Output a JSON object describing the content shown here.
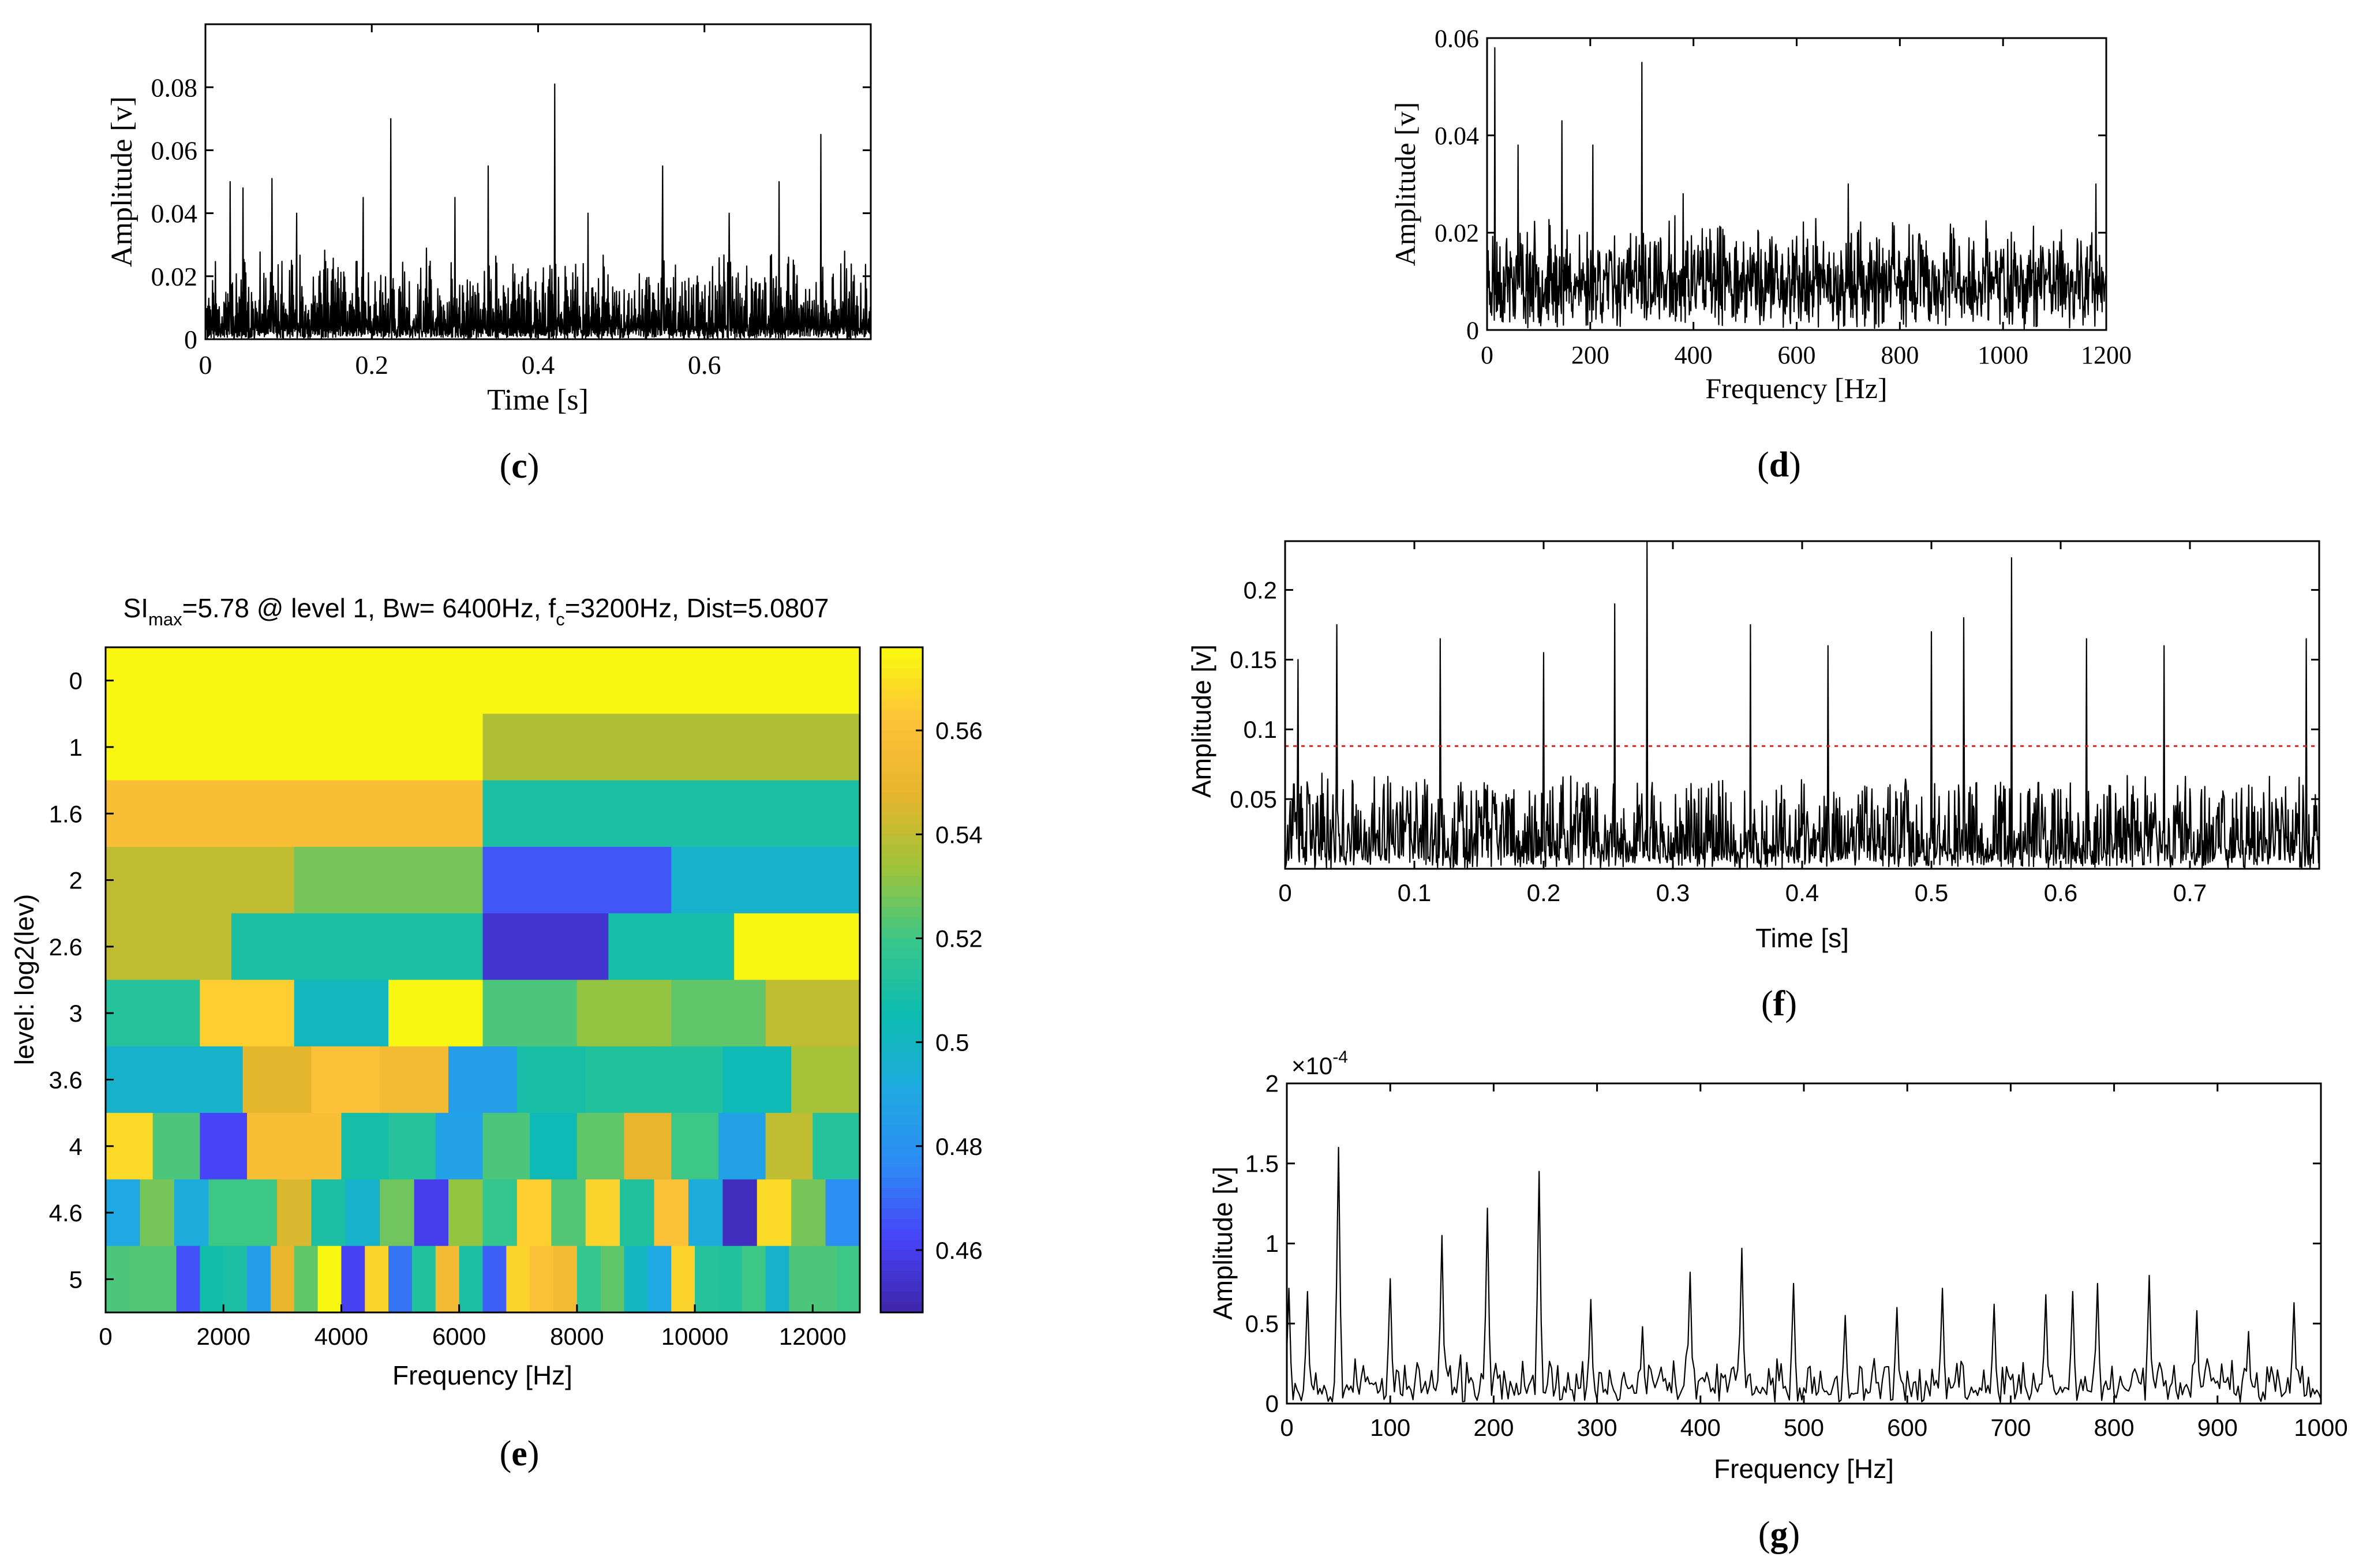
{
  "chart_data": [
    {
      "id": "c",
      "type": "line",
      "panel_label": "c",
      "title": "",
      "xlabel": "Time [s]",
      "ylabel": "Amplitude [v]",
      "xlim": [
        0,
        0.8
      ],
      "ylim": [
        0,
        0.1
      ],
      "xticks": [
        0,
        0.2,
        0.4,
        0.6
      ],
      "xtick_labels": [
        "0",
        "0.2",
        "0.4",
        "0.6"
      ],
      "yticks": [
        0,
        0.02,
        0.04,
        0.06,
        0.08
      ],
      "ytick_labels": [
        "0",
        "0.02",
        "0.04",
        "0.06",
        "0.08"
      ],
      "noise": {
        "samples": 1400,
        "base": 0.012,
        "spread": 0.018
      },
      "peaks": [
        {
          "x": 0.03,
          "y": 0.05
        },
        {
          "x": 0.045,
          "y": 0.048
        },
        {
          "x": 0.08,
          "y": 0.051
        },
        {
          "x": 0.11,
          "y": 0.04
        },
        {
          "x": 0.19,
          "y": 0.045
        },
        {
          "x": 0.223,
          "y": 0.07
        },
        {
          "x": 0.3,
          "y": 0.045
        },
        {
          "x": 0.34,
          "y": 0.055
        },
        {
          "x": 0.42,
          "y": 0.081
        },
        {
          "x": 0.46,
          "y": 0.04
        },
        {
          "x": 0.55,
          "y": 0.055
        },
        {
          "x": 0.63,
          "y": 0.04
        },
        {
          "x": 0.69,
          "y": 0.05
        },
        {
          "x": 0.74,
          "y": 0.065
        }
      ],
      "grid": false
    },
    {
      "id": "d",
      "type": "line",
      "panel_label": "d",
      "title": "",
      "xlabel": "Frequency [Hz]",
      "ylabel": "Amplitude [v]",
      "xlim": [
        0,
        1200
      ],
      "ylim": [
        0,
        0.06
      ],
      "xticks": [
        0,
        200,
        400,
        600,
        800,
        1000,
        1200
      ],
      "xtick_labels": [
        "0",
        "200",
        "400",
        "600",
        "800",
        "1000",
        "1200"
      ],
      "yticks": [
        0,
        0.02,
        0.04,
        0.06
      ],
      "ytick_labels": [
        "0",
        "0.02",
        "0.04",
        "0.06"
      ],
      "noise": {
        "samples": 1200,
        "base": 0.012,
        "spread": 0.012
      },
      "peaks": [
        {
          "x": 15,
          "y": 0.058
        },
        {
          "x": 60,
          "y": 0.038
        },
        {
          "x": 145,
          "y": 0.043
        },
        {
          "x": 205,
          "y": 0.038
        },
        {
          "x": 300,
          "y": 0.055
        },
        {
          "x": 380,
          "y": 0.028
        },
        {
          "x": 700,
          "y": 0.03
        },
        {
          "x": 1180,
          "y": 0.03
        }
      ],
      "grid": false
    },
    {
      "id": "e",
      "type": "heatmap",
      "panel_label": "e",
      "title": "SI_max=5.78 @ level 1, Bw= 6400Hz, f_c=3200Hz, Dist=5.0807",
      "title_parts": {
        "t1": "SI",
        "t1_sub": "max",
        "t2": "=5.78 @ level 1, Bw= 6400Hz, f",
        "t2_sub": "c",
        "t3": "=3200Hz, Dist=5.0807"
      },
      "xlabel": "Frequency [Hz]",
      "ylabel": "level: log2(lev)",
      "xlim": [
        0,
        12800
      ],
      "xticks": [
        0,
        2000,
        4000,
        6000,
        8000,
        10000,
        12000
      ],
      "xtick_labels": [
        "0",
        "2000",
        "4000",
        "6000",
        "8000",
        "10000",
        "12000"
      ],
      "level_labels": [
        "0",
        "1",
        "1.6",
        "2",
        "2.6",
        "3",
        "3.6",
        "4",
        "4.6",
        "5"
      ],
      "rows": [
        [
          0.575
        ],
        [
          0.575,
          0.537
        ],
        [
          0.558,
          0.51
        ],
        [
          0.54,
          0.528,
          0.466,
          0.497
        ],
        [
          0.54,
          0.51,
          0.51,
          0.455,
          0.508,
          0.575
        ],
        [
          0.513,
          0.565,
          0.501,
          0.575,
          0.522,
          0.532,
          0.525,
          0.54
        ],
        [
          0.497,
          0.497,
          0.547,
          0.561,
          0.555,
          0.485,
          0.509,
          0.512,
          0.512,
          0.503,
          0.535
        ],
        [
          0.568,
          0.522,
          0.462,
          0.558,
          0.558,
          0.508,
          0.513,
          0.487,
          0.522,
          0.503,
          0.525,
          0.548,
          0.52,
          0.487,
          0.54,
          0.513
        ],
        [
          0.49,
          0.528,
          0.492,
          0.52,
          0.52,
          0.545,
          0.51,
          0.497,
          0.527,
          0.46,
          0.532,
          0.518,
          0.565,
          0.523,
          0.566,
          0.512,
          0.56,
          0.492,
          0.452,
          0.568,
          0.528,
          0.478
        ],
        [
          0.522,
          0.523,
          0.523,
          0.465,
          0.507,
          0.51,
          0.485,
          0.548,
          0.525,
          0.575,
          0.461,
          0.566,
          0.472,
          0.512,
          0.555,
          0.51,
          0.468,
          0.566,
          0.56,
          0.555,
          0.518,
          0.525,
          0.5,
          0.49,
          0.566,
          0.513,
          0.512,
          0.52,
          0.497,
          0.522,
          0.522,
          0.52
        ]
      ],
      "colorbar": {
        "min": 0.448,
        "max": 0.576,
        "ticks": [
          0.46,
          0.48,
          0.5,
          0.52,
          0.54,
          0.56
        ],
        "tick_labels": [
          "0.46",
          "0.48",
          "0.5",
          "0.52",
          "0.54",
          "0.56"
        ]
      },
      "colormap": [
        "#3e26a8",
        "#4743f8",
        "#2d8bf5",
        "#1fa9e1",
        "#0dbbb0",
        "#37c78c",
        "#9dc43a",
        "#e7b52c",
        "#fdc13a",
        "#f9fb0e"
      ]
    },
    {
      "id": "f",
      "type": "line",
      "panel_label": "f",
      "title": "",
      "xlabel": "Time [s]",
      "ylabel": "Amplitude [v]",
      "xlim": [
        0,
        0.8
      ],
      "ylim": [
        0,
        0.235
      ],
      "xticks": [
        0,
        0.1,
        0.2,
        0.3,
        0.4,
        0.5,
        0.6,
        0.7
      ],
      "xtick_labels": [
        "0",
        "0.1",
        "0.2",
        "0.3",
        "0.4",
        "0.5",
        "0.6",
        "0.7"
      ],
      "yticks": [
        0.05,
        0.1,
        0.15,
        0.2
      ],
      "ytick_labels": [
        "0.05",
        "0.1",
        "0.15",
        "0.2"
      ],
      "threshold": 0.088,
      "threshold_color": "#e02020",
      "noise": {
        "samples": 1600,
        "base": 0.01,
        "spread": 0.06
      },
      "peaks": [
        {
          "x": 0.01,
          "y": 0.15
        },
        {
          "x": 0.04,
          "y": 0.175
        },
        {
          "x": 0.12,
          "y": 0.165
        },
        {
          "x": 0.2,
          "y": 0.155
        },
        {
          "x": 0.255,
          "y": 0.19
        },
        {
          "x": 0.28,
          "y": 0.235
        },
        {
          "x": 0.36,
          "y": 0.175
        },
        {
          "x": 0.42,
          "y": 0.16
        },
        {
          "x": 0.5,
          "y": 0.17
        },
        {
          "x": 0.525,
          "y": 0.18
        },
        {
          "x": 0.562,
          "y": 0.223
        },
        {
          "x": 0.62,
          "y": 0.165
        },
        {
          "x": 0.68,
          "y": 0.16
        },
        {
          "x": 0.79,
          "y": 0.165
        }
      ],
      "grid": false
    },
    {
      "id": "g",
      "type": "line",
      "panel_label": "g",
      "title": "",
      "xlabel": "Frequency [Hz]",
      "ylabel": "Amplitude [v]",
      "xlim": [
        0,
        1000
      ],
      "ylim": [
        0,
        2.0
      ],
      "exponent_label": "×10",
      "exponent_power": "-4",
      "xticks": [
        0,
        100,
        200,
        300,
        400,
        500,
        600,
        700,
        800,
        900,
        1000
      ],
      "xtick_labels": [
        "0",
        "100",
        "200",
        "300",
        "400",
        "500",
        "600",
        "700",
        "800",
        "900",
        "1000"
      ],
      "yticks": [
        0,
        0.5,
        1,
        1.5,
        2
      ],
      "ytick_labels": [
        "0",
        "0.5",
        "1",
        "1.5",
        "2"
      ],
      "noise": {
        "samples": 500,
        "base": 0.1,
        "spread": 0.22
      },
      "peaks": [
        {
          "x": 3,
          "y": 0.72
        },
        {
          "x": 20,
          "y": 0.7
        },
        {
          "x": 50,
          "y": 1.6
        },
        {
          "x": 100,
          "y": 0.78
        },
        {
          "x": 150,
          "y": 1.05
        },
        {
          "x": 195,
          "y": 1.22
        },
        {
          "x": 245,
          "y": 1.45
        },
        {
          "x": 295,
          "y": 0.65
        },
        {
          "x": 345,
          "y": 0.48
        },
        {
          "x": 390,
          "y": 0.82
        },
        {
          "x": 440,
          "y": 0.97
        },
        {
          "x": 490,
          "y": 0.75
        },
        {
          "x": 540,
          "y": 0.55
        },
        {
          "x": 590,
          "y": 0.6
        },
        {
          "x": 635,
          "y": 0.72
        },
        {
          "x": 685,
          "y": 0.62
        },
        {
          "x": 735,
          "y": 0.68
        },
        {
          "x": 760,
          "y": 0.7
        },
        {
          "x": 785,
          "y": 0.75
        },
        {
          "x": 835,
          "y": 0.8
        },
        {
          "x": 880,
          "y": 0.58
        },
        {
          "x": 930,
          "y": 0.45
        },
        {
          "x": 975,
          "y": 0.63
        }
      ],
      "grid": false
    }
  ]
}
